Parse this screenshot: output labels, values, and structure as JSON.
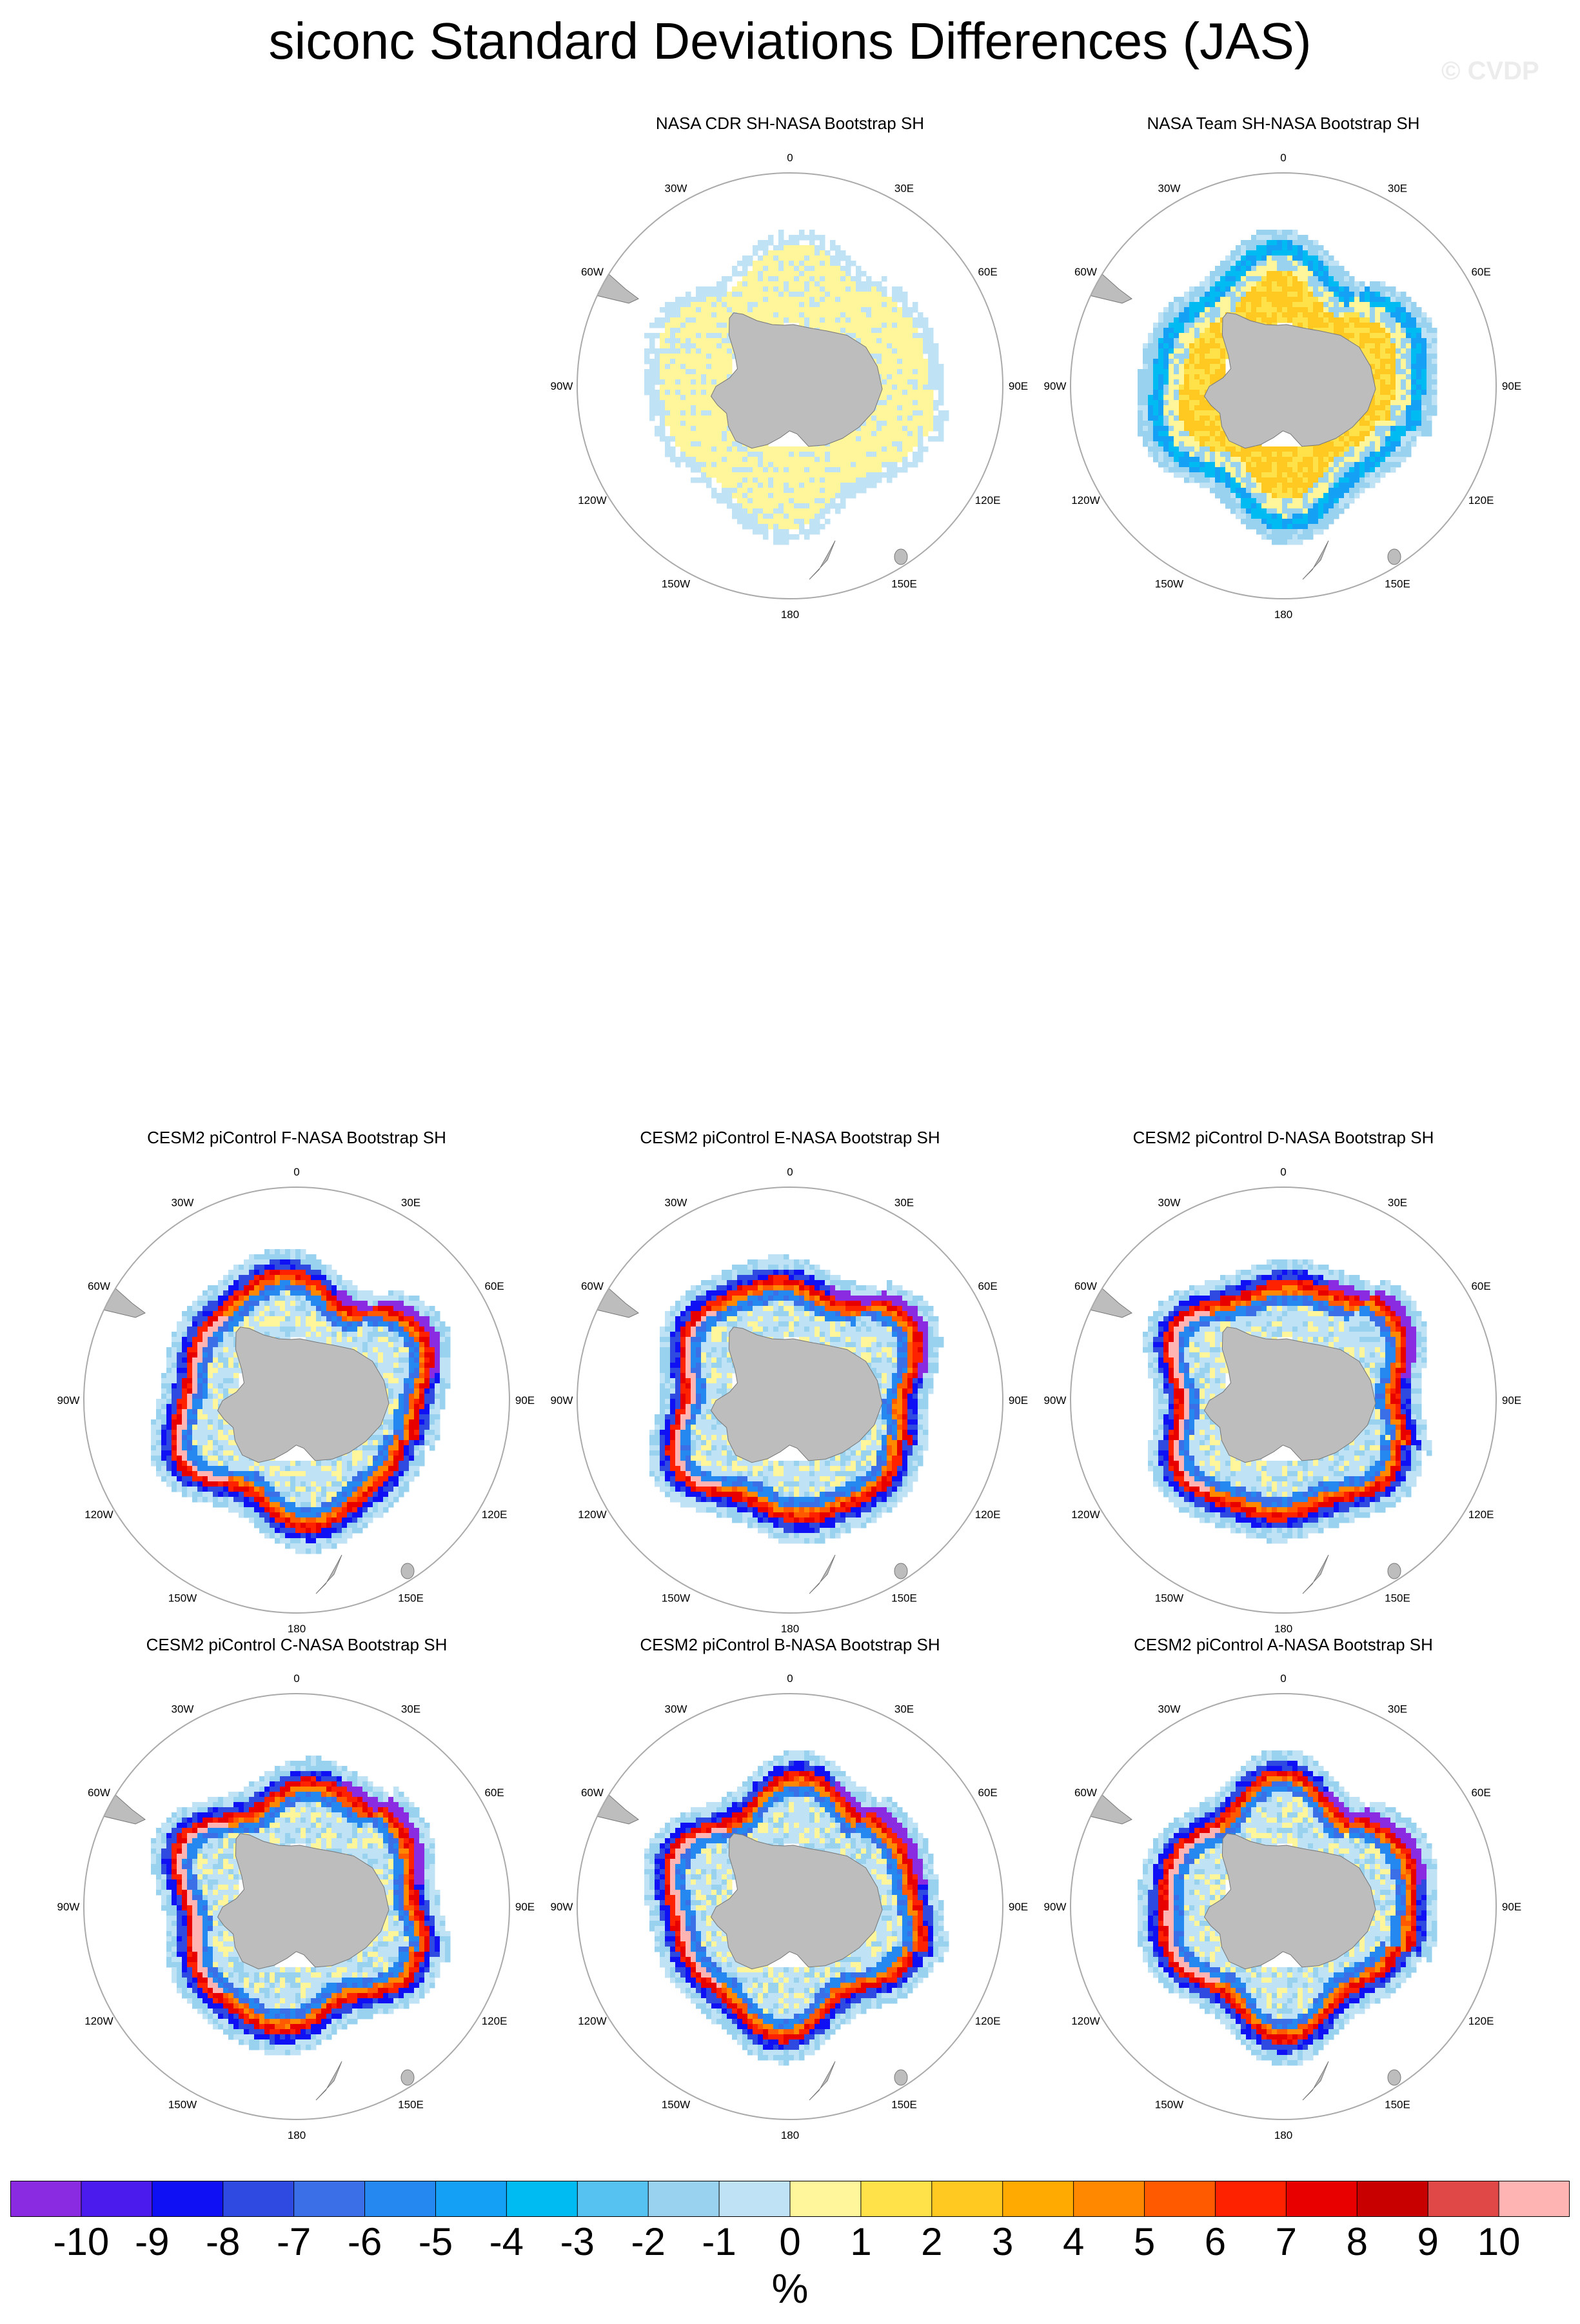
{
  "title": "siconc Standard Deviations Differences (JAS)",
  "copyright": "© CVDP",
  "panels": [
    {
      "id": "cdr",
      "title": "NASA CDR SH-NASA Bootstrap SH",
      "kind": "obs_cdr"
    },
    {
      "id": "team",
      "title": "NASA Team SH-NASA Bootstrap SH",
      "kind": "obs_team"
    },
    {
      "id": "F",
      "title": "CESM2 piControl F-NASA Bootstrap SH",
      "kind": "model"
    },
    {
      "id": "E",
      "title": "CESM2 piControl E-NASA Bootstrap SH",
      "kind": "model"
    },
    {
      "id": "D",
      "title": "CESM2 piControl D-NASA Bootstrap SH",
      "kind": "model"
    },
    {
      "id": "C",
      "title": "CESM2 piControl C-NASA Bootstrap SH",
      "kind": "model"
    },
    {
      "id": "B",
      "title": "CESM2 piControl B-NASA Bootstrap SH",
      "kind": "model"
    },
    {
      "id": "A",
      "title": "CESM2 piControl A-NASA Bootstrap SH",
      "kind": "model"
    }
  ],
  "lon_labels": [
    "0",
    "30E",
    "60E",
    "90E",
    "120E",
    "150E",
    "180",
    "150W",
    "120W",
    "90W",
    "60W",
    "30W"
  ],
  "colorbar": {
    "labels": [
      "-10",
      "-9",
      "-8",
      "-7",
      "-6",
      "-5",
      "-4",
      "-3",
      "-2",
      "-1",
      "0",
      "1",
      "2",
      "3",
      "4",
      "5",
      "6",
      "7",
      "8",
      "9",
      "10"
    ],
    "units": "%",
    "colors": [
      "#8a2be2",
      "#4b1aed",
      "#1010f5",
      "#2f4ae0",
      "#3a6fe8",
      "#2488f0",
      "#14a0f5",
      "#00bbf2",
      "#55c2f2",
      "#98d2ef",
      "#bfe2f4",
      "#fff59a",
      "#ffe14a",
      "#ffc922",
      "#ffaa00",
      "#ff8800",
      "#ff5a00",
      "#ff2200",
      "#e80000",
      "#c80000",
      "#e04848",
      "#ffb4b4"
    ]
  },
  "colors": {
    "land": "#bdbdbd",
    "land_edge": "#777777",
    "circle": "#aaaaaa",
    "missing": "#ffffff"
  }
}
